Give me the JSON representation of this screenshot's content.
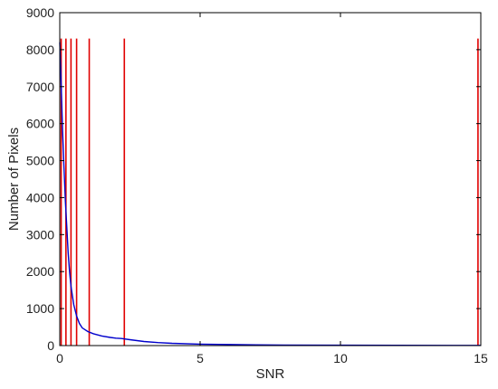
{
  "chart_data": {
    "type": "line",
    "title": "",
    "xlabel": "SNR",
    "ylabel": "Number of Pixels",
    "xlim": [
      0,
      15
    ],
    "ylim": [
      0,
      9000
    ],
    "x_ticks": [
      0,
      5,
      10,
      15
    ],
    "y_ticks": [
      0,
      1000,
      2000,
      3000,
      4000,
      5000,
      6000,
      7000,
      8000,
      9000
    ],
    "grid": false,
    "series": [
      {
        "color": "#0000cc",
        "x": [
          0,
          0.05,
          0.1,
          0.15,
          0.2,
          0.25,
          0.3,
          0.35,
          0.4,
          0.5,
          0.6,
          0.7,
          0.8,
          1.0,
          1.2,
          1.5,
          1.8,
          2.0,
          2.2,
          2.5,
          3.0,
          3.5,
          4.0,
          5.0,
          6.0,
          7.0,
          8.0,
          10.0,
          12.0,
          14.0,
          15.0
        ],
        "y": [
          8200,
          7100,
          5800,
          4800,
          3900,
          3200,
          2500,
          2000,
          1600,
          1100,
          800,
          600,
          480,
          380,
          320,
          260,
          220,
          200,
          190,
          160,
          110,
          80,
          60,
          40,
          30,
          20,
          15,
          10,
          8,
          5,
          5
        ]
      }
    ],
    "vertical_lines": {
      "color": "#e00000",
      "top_value": 8300,
      "x": [
        0.05,
        0.22,
        0.4,
        0.6,
        1.05,
        2.3,
        14.9
      ]
    }
  }
}
